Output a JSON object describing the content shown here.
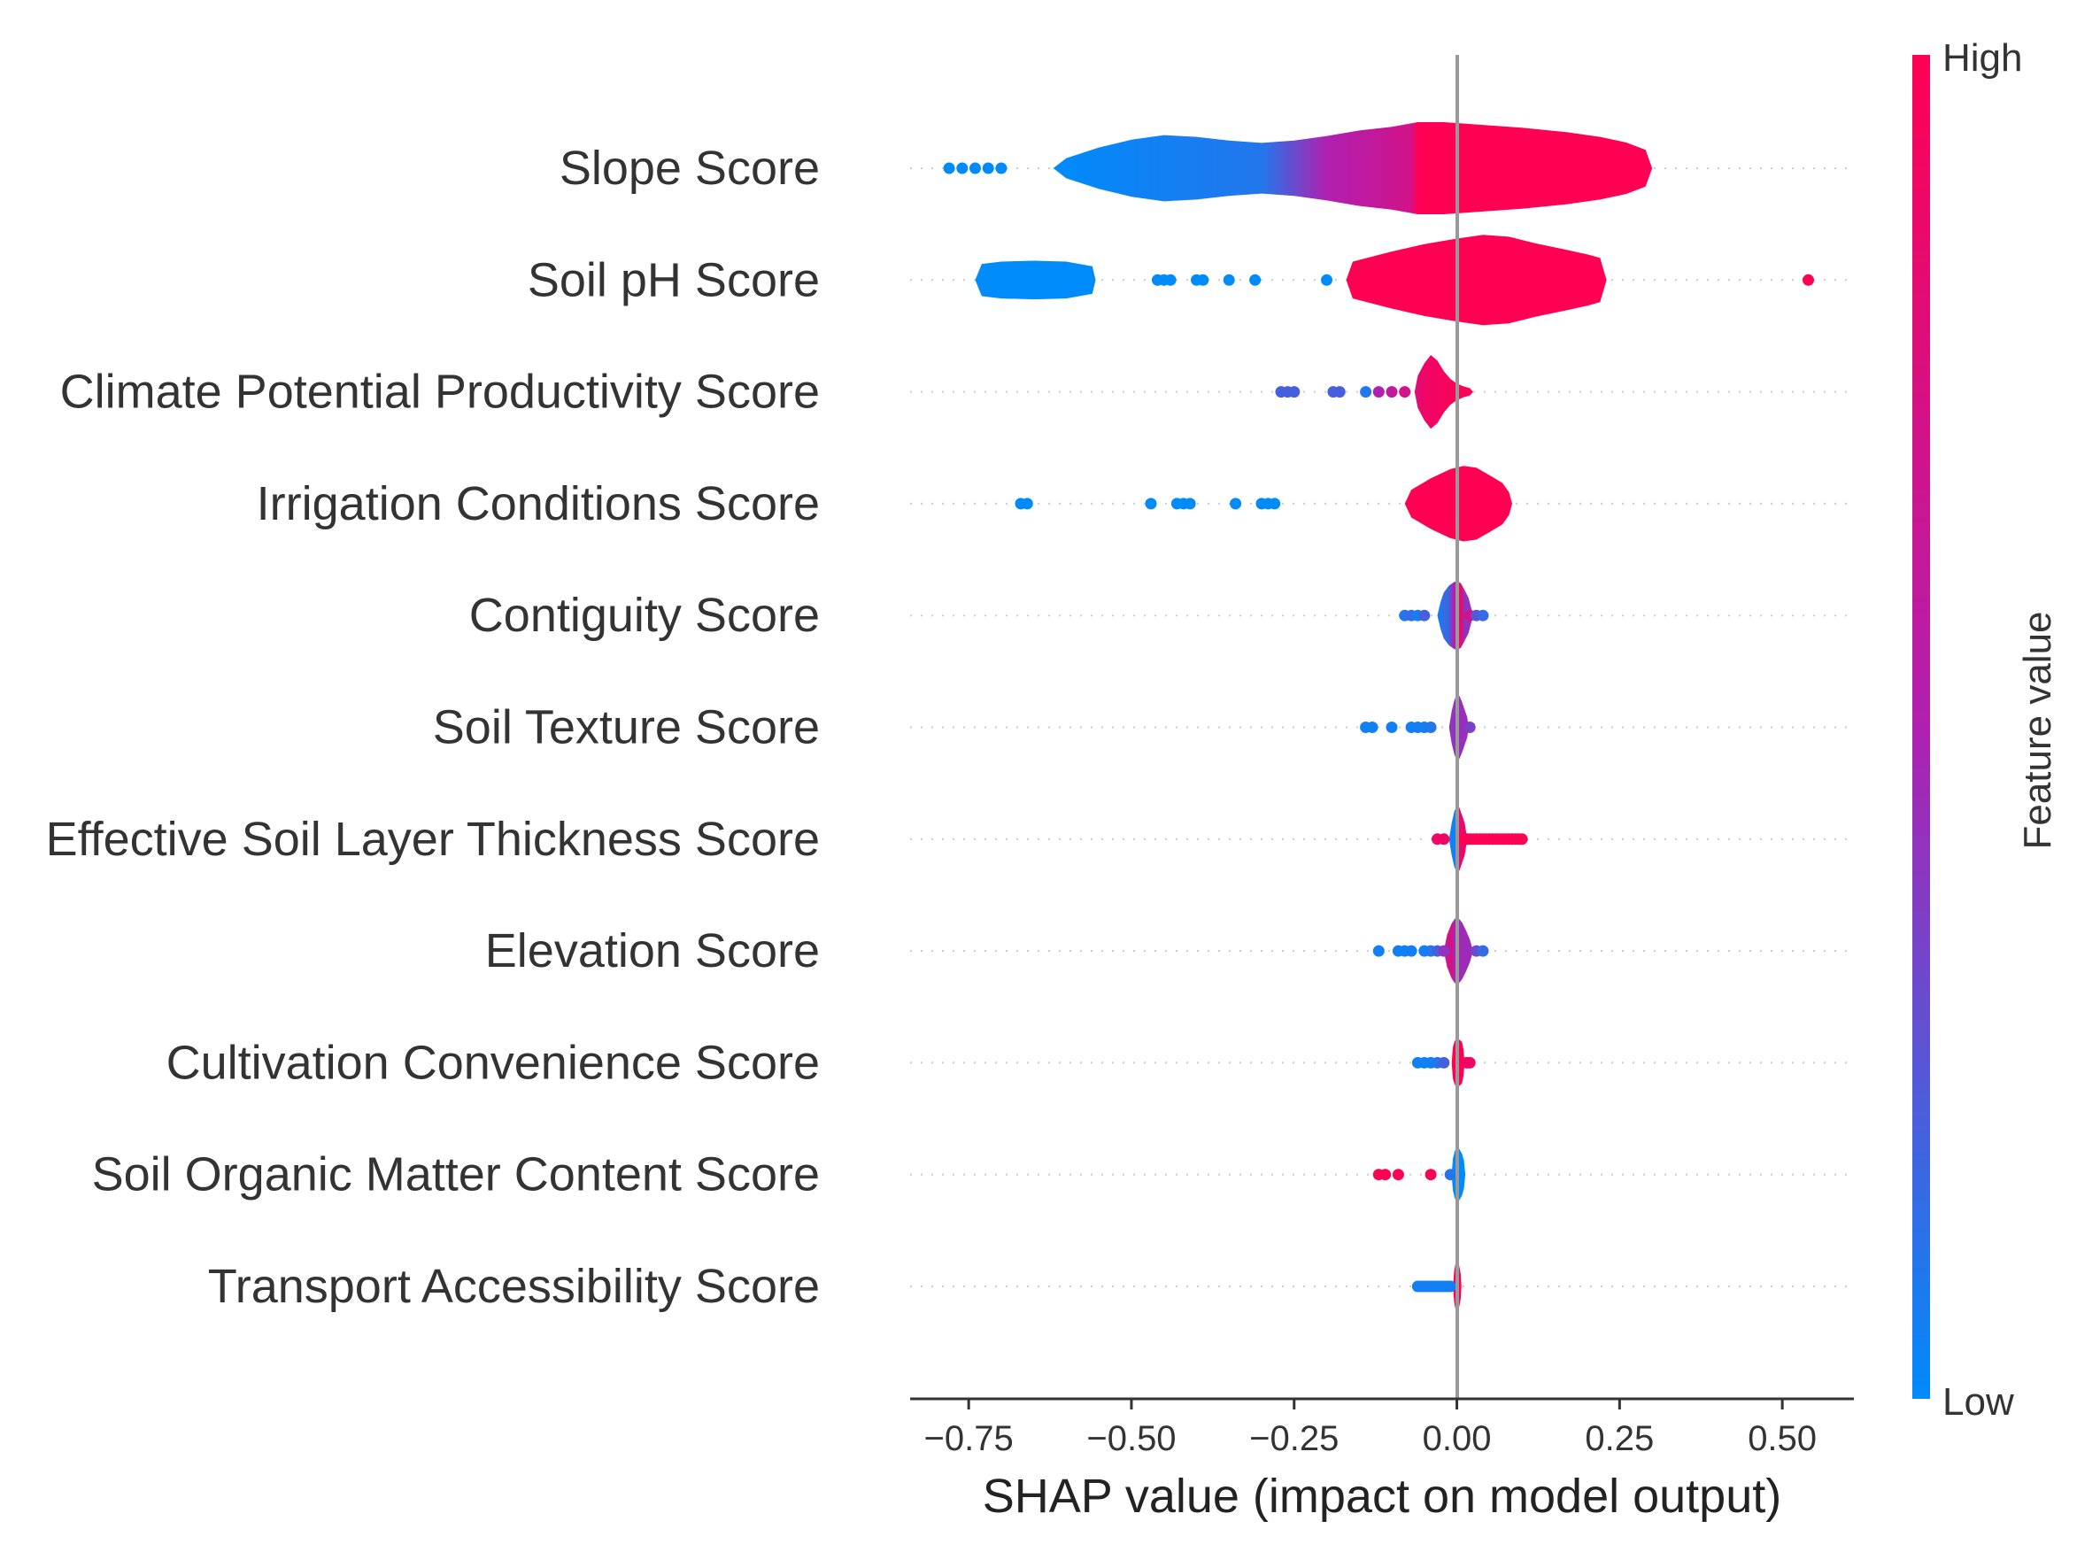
{
  "chart_data": {
    "type": "violin",
    "title": "",
    "xlabel": "SHAP value (impact on model output)",
    "ylabel": "",
    "xlim": [
      -0.84,
      0.61
    ],
    "xticks": [
      -0.75,
      -0.5,
      -0.25,
      0.0,
      0.25,
      0.5
    ],
    "xtick_labels": [
      "−0.75",
      "−0.50",
      "−0.25",
      "0.00",
      "0.25",
      "0.50"
    ],
    "colorbar": {
      "label": "Feature value",
      "high_label": "High",
      "low_label": "Low",
      "high_color": "#ff0052",
      "mid_color": "#b020b0",
      "low_color": "#008bfb"
    },
    "features": [
      {
        "name": "Slope Score",
        "violin": [
          [
            -0.62,
            0.0
          ],
          [
            -0.6,
            0.22
          ],
          [
            -0.55,
            0.45
          ],
          [
            -0.5,
            0.62
          ],
          [
            -0.45,
            0.72
          ],
          [
            -0.4,
            0.68
          ],
          [
            -0.35,
            0.6
          ],
          [
            -0.3,
            0.55
          ],
          [
            -0.25,
            0.6
          ],
          [
            -0.2,
            0.7
          ],
          [
            -0.15,
            0.82
          ],
          [
            -0.1,
            0.9
          ],
          [
            -0.06,
            1.0
          ],
          [
            -0.02,
            1.0
          ],
          [
            0.03,
            0.95
          ],
          [
            0.1,
            0.88
          ],
          [
            0.17,
            0.78
          ],
          [
            0.22,
            0.68
          ],
          [
            0.26,
            0.56
          ],
          [
            0.29,
            0.4
          ],
          [
            0.3,
            0.0
          ]
        ],
        "colors": [
          [
            -0.62,
            0.0
          ],
          [
            -0.3,
            0.1
          ],
          [
            -0.2,
            0.5
          ],
          [
            -0.12,
            0.62
          ],
          [
            -0.07,
            0.72
          ],
          [
            -0.06,
            1.0
          ],
          [
            0.3,
            1.0
          ]
        ],
        "points": [
          [
            -0.78,
            0.0
          ],
          [
            -0.76,
            0.0
          ],
          [
            -0.74,
            0.0
          ],
          [
            -0.72,
            0.0
          ],
          [
            -0.7,
            0.0
          ]
        ]
      },
      {
        "name": "Soil pH Score",
        "violin": [
          [
            -0.74,
            0.0
          ],
          [
            -0.73,
            0.35
          ],
          [
            -0.7,
            0.4
          ],
          [
            -0.65,
            0.42
          ],
          [
            -0.6,
            0.4
          ],
          [
            -0.56,
            0.3
          ],
          [
            -0.555,
            0.0
          ]
        ],
        "extra_violin": [
          [
            -0.17,
            0.0
          ],
          [
            -0.16,
            0.4
          ],
          [
            -0.1,
            0.62
          ],
          [
            -0.05,
            0.78
          ],
          [
            0.0,
            0.9
          ],
          [
            0.04,
            0.98
          ],
          [
            0.08,
            0.94
          ],
          [
            0.12,
            0.8
          ],
          [
            0.16,
            0.68
          ],
          [
            0.2,
            0.56
          ],
          [
            0.22,
            0.48
          ],
          [
            0.23,
            0.0
          ]
        ],
        "colors": [
          [
            -0.74,
            0.0
          ],
          [
            -0.55,
            0.0
          ],
          [
            -0.17,
            1.0
          ],
          [
            0.23,
            1.0
          ]
        ],
        "points": [
          [
            -0.46,
            0.0
          ],
          [
            -0.45,
            0.0
          ],
          [
            -0.44,
            0.0
          ],
          [
            -0.4,
            0.0
          ],
          [
            -0.39,
            0.0
          ],
          [
            -0.35,
            0.0
          ],
          [
            -0.31,
            0.0
          ],
          [
            -0.2,
            0.0
          ],
          [
            0.54,
            1.0
          ]
        ]
      },
      {
        "name": "Climate Potential Productivity Score",
        "violin": [
          [
            -0.065,
            0.0
          ],
          [
            -0.06,
            0.35
          ],
          [
            -0.05,
            0.62
          ],
          [
            -0.04,
            0.8
          ],
          [
            -0.03,
            0.68
          ],
          [
            -0.02,
            0.45
          ],
          [
            -0.01,
            0.28
          ],
          [
            0.0,
            0.18
          ],
          [
            0.01,
            0.12
          ],
          [
            0.02,
            0.08
          ],
          [
            0.025,
            0.0
          ]
        ],
        "colors": [
          [
            -0.065,
            0.75
          ],
          [
            -0.05,
            0.9
          ],
          [
            0.025,
            1.0
          ]
        ],
        "points": [
          [
            -0.27,
            0.2
          ],
          [
            -0.26,
            0.2
          ],
          [
            -0.25,
            0.2
          ],
          [
            -0.19,
            0.2
          ],
          [
            -0.18,
            0.2
          ],
          [
            -0.14,
            0.1
          ],
          [
            -0.12,
            0.5
          ],
          [
            -0.1,
            0.6
          ],
          [
            -0.08,
            0.7
          ]
        ]
      },
      {
        "name": "Irrigation Conditions Score",
        "violin": [
          [
            -0.08,
            0.0
          ],
          [
            -0.07,
            0.3
          ],
          [
            -0.04,
            0.55
          ],
          [
            -0.01,
            0.75
          ],
          [
            0.01,
            0.82
          ],
          [
            0.03,
            0.78
          ],
          [
            0.05,
            0.62
          ],
          [
            0.07,
            0.45
          ],
          [
            0.08,
            0.25
          ],
          [
            0.085,
            0.0
          ]
        ],
        "colors": [
          [
            -0.08,
            1.0
          ],
          [
            0.085,
            1.0
          ]
        ],
        "points": [
          [
            -0.67,
            0.0
          ],
          [
            -0.66,
            0.0
          ],
          [
            -0.47,
            0.0
          ],
          [
            -0.43,
            0.0
          ],
          [
            -0.42,
            0.0
          ],
          [
            -0.41,
            0.0
          ],
          [
            -0.34,
            0.0
          ],
          [
            -0.3,
            0.0
          ],
          [
            -0.29,
            0.0
          ],
          [
            -0.28,
            0.0
          ]
        ]
      },
      {
        "name": "Contiguity Score",
        "violin": [
          [
            -0.03,
            0.0
          ],
          [
            -0.025,
            0.3
          ],
          [
            -0.02,
            0.5
          ],
          [
            -0.012,
            0.65
          ],
          [
            -0.005,
            0.72
          ],
          [
            0.0,
            0.75
          ],
          [
            0.006,
            0.7
          ],
          [
            0.012,
            0.55
          ],
          [
            0.018,
            0.38
          ],
          [
            0.025,
            0.0
          ]
        ],
        "colors": [
          [
            -0.03,
            0.05
          ],
          [
            -0.012,
            0.2
          ],
          [
            -0.005,
            0.5
          ],
          [
            0.0,
            0.7
          ],
          [
            0.006,
            0.9
          ],
          [
            0.012,
            0.4
          ],
          [
            0.025,
            0.45
          ]
        ],
        "points": [
          [
            -0.08,
            0.1
          ],
          [
            -0.07,
            0.15
          ],
          [
            -0.06,
            0.05
          ],
          [
            -0.05,
            0.2
          ],
          [
            0.02,
            0.7
          ],
          [
            0.03,
            0.25
          ],
          [
            0.04,
            0.15
          ]
        ]
      },
      {
        "name": "Soil Texture Score",
        "violin": [
          [
            -0.012,
            0.0
          ],
          [
            -0.008,
            0.35
          ],
          [
            -0.004,
            0.58
          ],
          [
            0.0,
            0.72
          ],
          [
            0.004,
            0.68
          ],
          [
            0.008,
            0.55
          ],
          [
            0.012,
            0.38
          ],
          [
            0.016,
            0.22
          ],
          [
            0.018,
            0.0
          ]
        ],
        "colors": [
          [
            -0.012,
            0.4
          ],
          [
            0.018,
            0.45
          ]
        ],
        "points": [
          [
            -0.14,
            0.05
          ],
          [
            -0.13,
            0.05
          ],
          [
            -0.1,
            0.05
          ],
          [
            -0.07,
            0.05
          ],
          [
            -0.06,
            0.05
          ],
          [
            -0.05,
            0.05
          ],
          [
            -0.04,
            0.1
          ],
          [
            0.02,
            0.35
          ]
        ]
      },
      {
        "name": "Effective Soil Layer Thickness Score",
        "violin": [
          [
            -0.012,
            0.0
          ],
          [
            -0.008,
            0.35
          ],
          [
            -0.004,
            0.6
          ],
          [
            0.0,
            0.72
          ],
          [
            0.004,
            0.68
          ],
          [
            0.008,
            0.52
          ],
          [
            0.012,
            0.35
          ],
          [
            0.016,
            0.0
          ]
        ],
        "colors": [
          [
            -0.012,
            0.05
          ],
          [
            0.0,
            0.05
          ],
          [
            0.003,
            0.8
          ],
          [
            0.016,
            1.0
          ]
        ],
        "points": [
          [
            -0.03,
            0.9
          ],
          [
            -0.02,
            0.9
          ],
          [
            0.01,
            1.0
          ],
          [
            0.015,
            1.0
          ],
          [
            0.02,
            1.0
          ],
          [
            0.025,
            1.0
          ],
          [
            0.03,
            1.0
          ],
          [
            0.035,
            1.0
          ],
          [
            0.04,
            1.0
          ],
          [
            0.045,
            1.0
          ],
          [
            0.05,
            1.0
          ],
          [
            0.055,
            1.0
          ],
          [
            0.06,
            1.0
          ],
          [
            0.065,
            1.0
          ],
          [
            0.07,
            1.0
          ],
          [
            0.075,
            1.0
          ],
          [
            0.08,
            1.0
          ],
          [
            0.085,
            1.0
          ],
          [
            0.09,
            1.0
          ],
          [
            0.095,
            1.0
          ],
          [
            0.1,
            1.0
          ]
        ]
      },
      {
        "name": "Elevation Score",
        "violin": [
          [
            -0.02,
            0.0
          ],
          [
            -0.015,
            0.35
          ],
          [
            -0.008,
            0.6
          ],
          [
            -0.003,
            0.7
          ],
          [
            0.002,
            0.72
          ],
          [
            0.008,
            0.62
          ],
          [
            0.014,
            0.45
          ],
          [
            0.02,
            0.25
          ],
          [
            0.025,
            0.0
          ]
        ],
        "colors": [
          [
            -0.02,
            0.6
          ],
          [
            -0.008,
            0.75
          ],
          [
            -0.003,
            0.45
          ],
          [
            0.025,
            0.45
          ]
        ],
        "points": [
          [
            -0.12,
            0.05
          ],
          [
            -0.09,
            0.05
          ],
          [
            -0.08,
            0.05
          ],
          [
            -0.07,
            0.05
          ],
          [
            -0.05,
            0.05
          ],
          [
            -0.04,
            0.1
          ],
          [
            -0.03,
            0.2
          ],
          [
            -0.02,
            0.4
          ],
          [
            0.03,
            0.3
          ],
          [
            0.04,
            0.15
          ]
        ]
      },
      {
        "name": "Cultivation Convenience Score",
        "violin": [
          [
            -0.008,
            0.0
          ],
          [
            -0.006,
            0.35
          ],
          [
            -0.003,
            0.48
          ],
          [
            0.0,
            0.5
          ],
          [
            0.004,
            0.5
          ],
          [
            0.008,
            0.45
          ],
          [
            0.01,
            0.3
          ],
          [
            0.012,
            0.0
          ]
        ],
        "colors": [
          [
            -0.008,
            1.0
          ],
          [
            0.012,
            1.0
          ]
        ],
        "points": [
          [
            -0.06,
            0.05
          ],
          [
            -0.05,
            0.05
          ],
          [
            -0.04,
            0.05
          ],
          [
            -0.03,
            0.1
          ],
          [
            -0.02,
            0.2
          ],
          [
            0.015,
            0.9
          ],
          [
            0.02,
            0.9
          ]
        ]
      },
      {
        "name": "Soil Organic Matter Content Score",
        "violin": [
          [
            -0.008,
            0.0
          ],
          [
            -0.006,
            0.35
          ],
          [
            -0.003,
            0.52
          ],
          [
            0.0,
            0.58
          ],
          [
            0.004,
            0.55
          ],
          [
            0.008,
            0.45
          ],
          [
            0.011,
            0.3
          ],
          [
            0.013,
            0.0
          ]
        ],
        "colors": [
          [
            -0.008,
            0.0
          ],
          [
            0.013,
            0.0
          ]
        ],
        "points": [
          [
            -0.12,
            1.0
          ],
          [
            -0.11,
            1.0
          ],
          [
            -0.09,
            1.0
          ],
          [
            -0.04,
            1.0
          ],
          [
            -0.01,
            0.1
          ]
        ]
      },
      {
        "name": "Transport Accessibility Score",
        "violin": [
          [
            -0.006,
            0.0
          ],
          [
            -0.004,
            0.35
          ],
          [
            -0.002,
            0.5
          ],
          [
            0.0,
            0.55
          ],
          [
            0.002,
            0.52
          ],
          [
            0.004,
            0.42
          ],
          [
            0.006,
            0.25
          ],
          [
            0.007,
            0.0
          ]
        ],
        "colors": [
          [
            -0.006,
            1.0
          ],
          [
            0.007,
            1.0
          ]
        ],
        "points": [
          [
            -0.06,
            0.05
          ],
          [
            -0.055,
            0.05
          ],
          [
            -0.05,
            0.05
          ],
          [
            -0.045,
            0.05
          ],
          [
            -0.04,
            0.05
          ],
          [
            -0.035,
            0.05
          ],
          [
            -0.03,
            0.05
          ],
          [
            -0.025,
            0.05
          ],
          [
            -0.02,
            0.05
          ],
          [
            -0.015,
            0.05
          ],
          [
            -0.01,
            0.05
          ]
        ]
      }
    ]
  }
}
